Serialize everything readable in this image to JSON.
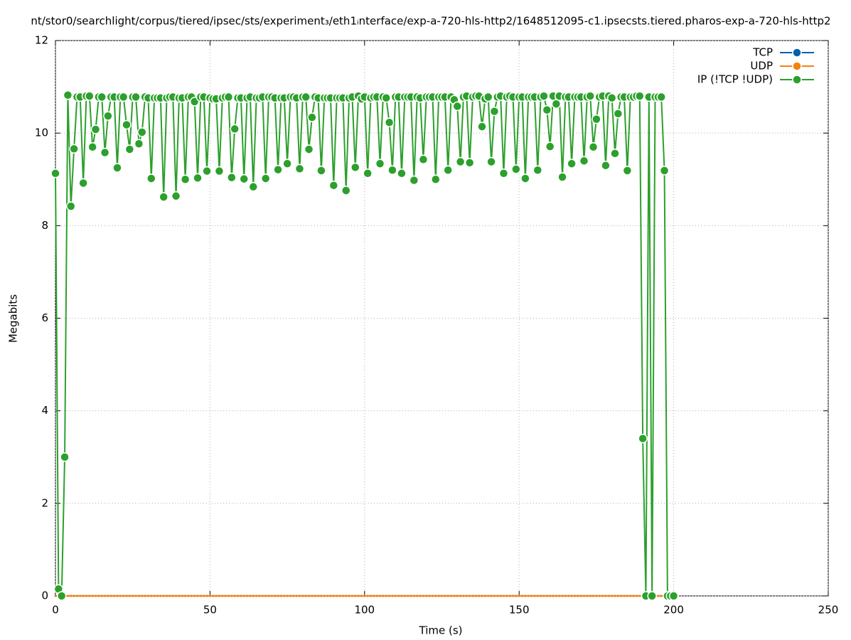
{
  "chart_data": {
    "type": "line",
    "title": "nt/stor0/searchlight/corpus/tiered/ipsec/sts/experiment₃/eth1ᵢnterface/exp-a-720-hls-http2/1648512095-c1.ipsecsts.tiered.pharos-exp-a-720-hls-http2",
    "x_label": "Time (s)",
    "y_label": "Megabits",
    "xlim": [
      0,
      250
    ],
    "xticks": [
      0,
      50,
      100,
      150,
      200,
      250
    ],
    "ylim": [
      0,
      12
    ],
    "yticks": [
      0,
      2,
      4,
      6,
      8,
      10,
      12
    ],
    "grid": true,
    "legend": "top-right",
    "x": [
      0,
      1,
      2,
      3,
      4,
      5,
      6,
      7,
      8,
      9,
      10,
      11,
      12,
      13,
      14,
      15,
      16,
      17,
      18,
      19,
      20,
      21,
      22,
      23,
      24,
      25,
      26,
      27,
      28,
      29,
      30,
      31,
      32,
      33,
      34,
      35,
      36,
      37,
      38,
      39,
      40,
      41,
      42,
      43,
      44,
      45,
      46,
      47,
      48,
      49,
      50,
      51,
      52,
      53,
      54,
      55,
      56,
      57,
      58,
      59,
      60,
      61,
      62,
      63,
      64,
      65,
      66,
      67,
      68,
      69,
      70,
      71,
      72,
      73,
      74,
      75,
      76,
      77,
      78,
      79,
      80,
      81,
      82,
      83,
      84,
      85,
      86,
      87,
      88,
      89,
      90,
      91,
      92,
      93,
      94,
      95,
      96,
      97,
      98,
      99,
      100,
      101,
      102,
      103,
      104,
      105,
      106,
      107,
      108,
      109,
      110,
      111,
      112,
      113,
      114,
      115,
      116,
      117,
      118,
      119,
      120,
      121,
      122,
      123,
      124,
      125,
      126,
      127,
      128,
      129,
      130,
      131,
      132,
      133,
      134,
      135,
      136,
      137,
      138,
      139,
      140,
      141,
      142,
      143,
      144,
      145,
      146,
      147,
      148,
      149,
      150,
      151,
      152,
      153,
      154,
      155,
      156,
      157,
      158,
      159,
      160,
      161,
      162,
      163,
      164,
      165,
      166,
      167,
      168,
      169,
      170,
      171,
      172,
      173,
      174,
      175,
      176,
      177,
      178,
      179,
      180,
      181,
      182,
      183,
      184,
      185,
      186,
      187,
      188,
      189,
      190,
      191,
      192,
      193,
      194,
      195,
      196,
      197,
      198,
      199,
      200
    ],
    "series": [
      {
        "name": "TCP",
        "color": "#0060ad",
        "values": [
          0,
          0,
          0,
          0,
          0,
          0,
          0,
          0,
          0,
          0,
          0,
          0,
          0,
          0,
          0,
          0,
          0,
          0,
          0,
          0,
          0,
          0,
          0,
          0,
          0,
          0,
          0,
          0,
          0,
          0,
          0,
          0,
          0,
          0,
          0,
          0,
          0,
          0,
          0,
          0,
          0,
          0,
          0,
          0,
          0,
          0,
          0,
          0,
          0,
          0,
          0,
          0,
          0,
          0,
          0,
          0,
          0,
          0,
          0,
          0,
          0,
          0,
          0,
          0,
          0,
          0,
          0,
          0,
          0,
          0,
          0,
          0,
          0,
          0,
          0,
          0,
          0,
          0,
          0,
          0,
          0,
          0,
          0,
          0,
          0,
          0,
          0,
          0,
          0,
          0,
          0,
          0,
          0,
          0,
          0,
          0,
          0,
          0,
          0,
          0,
          0,
          0,
          0,
          0,
          0,
          0,
          0,
          0,
          0,
          0,
          0,
          0,
          0,
          0,
          0,
          0,
          0,
          0,
          0,
          0,
          0,
          0,
          0,
          0,
          0,
          0,
          0,
          0,
          0,
          0,
          0,
          0,
          0,
          0,
          0,
          0,
          0,
          0,
          0,
          0,
          0,
          0,
          0,
          0,
          0,
          0,
          0,
          0,
          0,
          0,
          0,
          0,
          0,
          0,
          0,
          0,
          0,
          0,
          0,
          0,
          0,
          0,
          0,
          0,
          0,
          0,
          0,
          0,
          0,
          0,
          0,
          0,
          0,
          0,
          0,
          0,
          0,
          0,
          0,
          0,
          0,
          0,
          0,
          0,
          0,
          0,
          0,
          0,
          0,
          0,
          0,
          0,
          0,
          0,
          0,
          0,
          0,
          0,
          0,
          0,
          0
        ]
      },
      {
        "name": "UDP",
        "color": "#f5820f",
        "values": [
          0,
          0,
          0,
          0,
          0,
          0,
          0,
          0,
          0,
          0,
          0,
          0,
          0,
          0,
          0,
          0,
          0,
          0,
          0,
          0,
          0,
          0,
          0,
          0,
          0,
          0,
          0,
          0,
          0,
          0,
          0,
          0,
          0,
          0,
          0,
          0,
          0,
          0,
          0,
          0,
          0,
          0,
          0,
          0,
          0,
          0,
          0,
          0,
          0,
          0,
          0,
          0,
          0,
          0,
          0,
          0,
          0,
          0,
          0,
          0,
          0,
          0,
          0,
          0,
          0,
          0,
          0,
          0,
          0,
          0,
          0,
          0,
          0,
          0,
          0,
          0,
          0,
          0,
          0,
          0,
          0,
          0,
          0,
          0,
          0,
          0,
          0,
          0,
          0,
          0,
          0,
          0,
          0,
          0,
          0,
          0,
          0,
          0,
          0,
          0,
          0,
          0,
          0,
          0,
          0,
          0,
          0,
          0,
          0,
          0,
          0,
          0,
          0,
          0,
          0,
          0,
          0,
          0,
          0,
          0,
          0,
          0,
          0,
          0,
          0,
          0,
          0,
          0,
          0,
          0,
          0,
          0,
          0,
          0,
          0,
          0,
          0,
          0,
          0,
          0,
          0,
          0,
          0,
          0,
          0,
          0,
          0,
          0,
          0,
          0,
          0,
          0,
          0,
          0,
          0,
          0,
          0,
          0,
          0,
          0,
          0,
          0,
          0,
          0,
          0,
          0,
          0,
          0,
          0,
          0,
          0,
          0,
          0,
          0,
          0,
          0,
          0,
          0,
          0,
          0,
          0,
          0,
          0,
          0,
          0,
          0,
          0,
          0,
          0,
          0,
          0,
          0,
          0,
          0,
          0,
          0,
          0,
          0,
          0,
          0,
          0
        ]
      },
      {
        "name": "IP (!TCP  !UDP)",
        "color": "#2ca02c",
        "values": [
          9.13,
          0.15,
          0,
          3.0,
          10.82,
          8.42,
          9.66,
          10.78,
          10.78,
          8.92,
          10.8,
          10.8,
          9.7,
          10.08,
          10.78,
          10.78,
          9.58,
          10.37,
          10.78,
          10.78,
          9.25,
          10.78,
          10.78,
          10.18,
          9.65,
          10.78,
          10.78,
          9.77,
          10.02,
          10.78,
          10.76,
          9.02,
          10.76,
          10.76,
          10.76,
          8.62,
          10.76,
          10.78,
          10.78,
          8.64,
          10.76,
          10.76,
          9.0,
          10.78,
          10.78,
          10.68,
          9.03,
          10.78,
          10.78,
          9.18,
          10.76,
          10.74,
          10.74,
          9.18,
          10.76,
          10.78,
          10.78,
          9.04,
          10.09,
          10.76,
          10.76,
          9.01,
          10.76,
          10.78,
          8.84,
          10.76,
          10.76,
          10.78,
          9.02,
          10.78,
          10.78,
          10.76,
          9.21,
          10.76,
          10.76,
          9.34,
          10.78,
          10.78,
          10.76,
          9.23,
          10.78,
          10.78,
          9.65,
          10.34,
          10.78,
          10.76,
          9.19,
          10.76,
          10.76,
          10.76,
          8.87,
          10.76,
          10.76,
          10.76,
          8.76,
          10.76,
          10.78,
          9.26,
          10.8,
          10.74,
          10.78,
          9.13,
          10.76,
          10.78,
          10.78,
          9.34,
          10.78,
          10.76,
          10.23,
          9.2,
          10.78,
          10.78,
          9.13,
          10.78,
          10.78,
          10.78,
          8.98,
          10.78,
          10.76,
          9.43,
          10.78,
          10.78,
          10.78,
          9.0,
          10.78,
          10.78,
          10.78,
          9.2,
          10.78,
          10.72,
          10.58,
          9.38,
          10.78,
          10.8,
          9.36,
          10.78,
          10.8,
          10.8,
          10.14,
          10.74,
          10.78,
          9.38,
          10.47,
          10.78,
          10.8,
          9.13,
          10.78,
          10.8,
          10.78,
          9.22,
          10.78,
          10.78,
          9.02,
          10.78,
          10.78,
          10.78,
          9.2,
          10.78,
          10.8,
          10.5,
          9.71,
          10.8,
          10.63,
          10.8,
          9.05,
          10.78,
          10.78,
          9.34,
          10.78,
          10.78,
          10.78,
          9.4,
          10.78,
          10.8,
          9.7,
          10.3,
          10.78,
          10.8,
          9.3,
          10.8,
          10.76,
          9.56,
          10.42,
          10.78,
          10.78,
          9.19,
          10.78,
          10.78,
          10.8,
          10.8,
          3.4,
          0,
          10.78,
          0,
          10.78,
          10.78,
          10.78,
          9.19,
          0,
          0,
          0
        ]
      }
    ]
  }
}
